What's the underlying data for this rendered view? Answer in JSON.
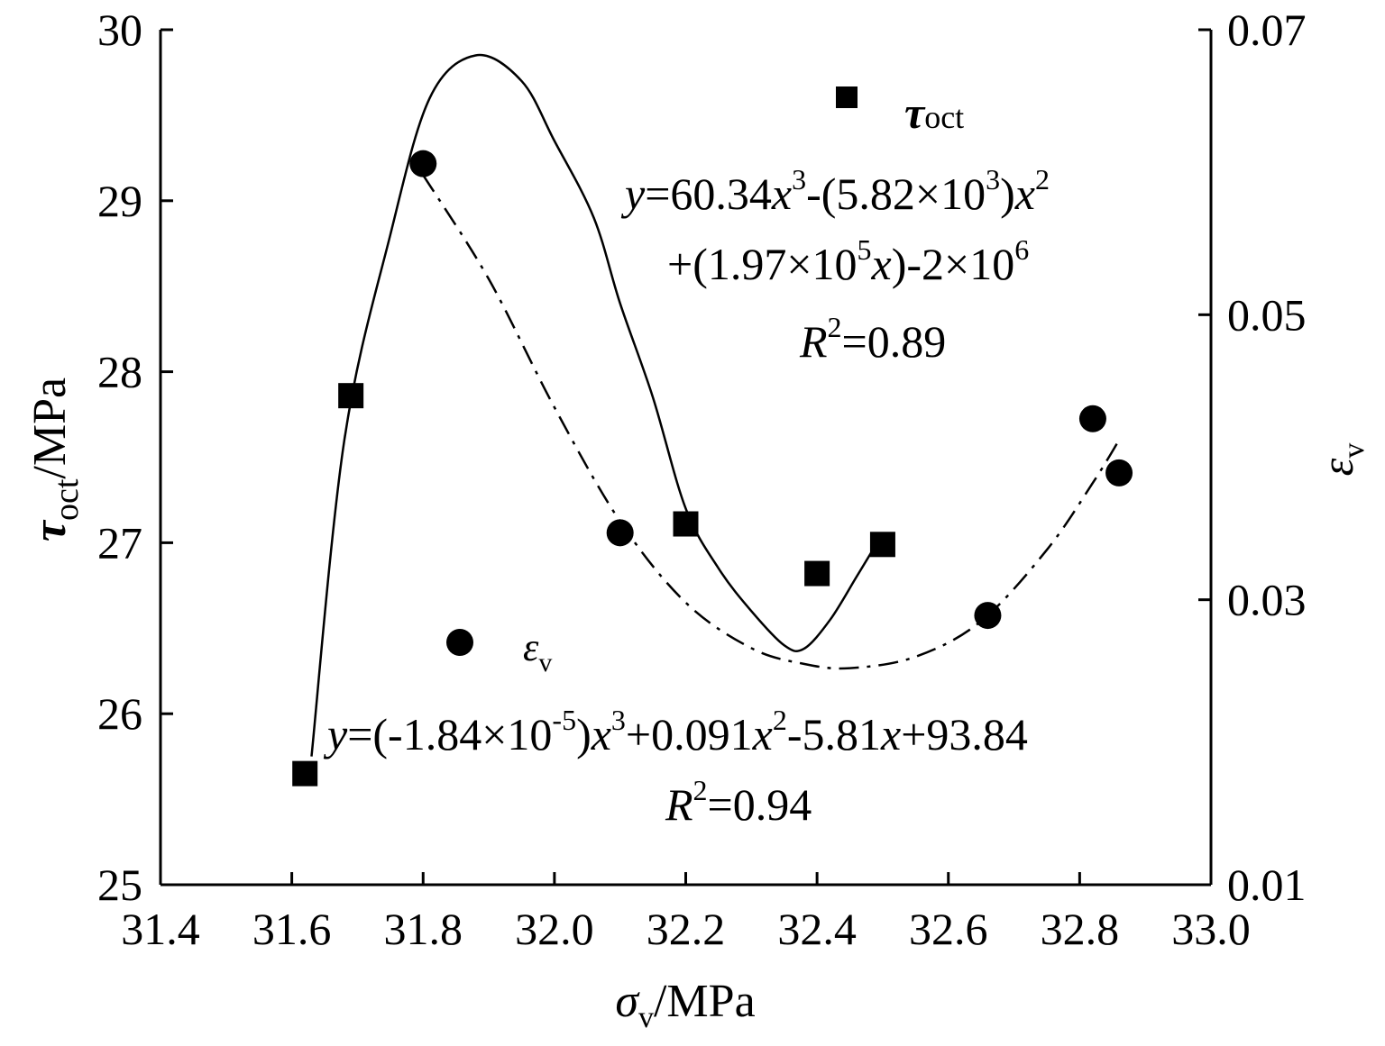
{
  "chart_data": {
    "type": "scatter",
    "xlabel": {
      "sym": "σ",
      "sub": "v",
      "unit": "/MPa"
    },
    "ylabel_left": {
      "sym": "τ",
      "sub": "oct",
      "unit": "/MPa"
    },
    "ylabel_right": {
      "sym": "ε",
      "sub": "v"
    },
    "xlim": [
      31.4,
      33.0
    ],
    "ylim_left": [
      25,
      30
    ],
    "ylim_right": [
      0.01,
      0.07
    ],
    "x_ticks": [
      "31.4",
      "31.6",
      "31.8",
      "32.0",
      "32.2",
      "32.4",
      "32.6",
      "32.8",
      "33.0"
    ],
    "y_left_ticks": [
      "25",
      "26",
      "27",
      "28",
      "29",
      "30"
    ],
    "y_right_ticks": [
      "0.01",
      "0.03",
      "0.05",
      "0.07"
    ],
    "series": [
      {
        "name": "τoct",
        "axis": "left",
        "marker": "square",
        "fit_line": "solid",
        "points": [
          [
            31.62,
            25.65
          ],
          [
            31.69,
            27.86
          ],
          [
            32.2,
            27.11
          ],
          [
            32.4,
            26.82
          ],
          [
            32.5,
            26.99
          ]
        ],
        "fit_curve": [
          [
            31.63,
            25.75
          ],
          [
            31.68,
            27.6
          ],
          [
            31.75,
            28.8
          ],
          [
            31.81,
            29.6
          ],
          [
            31.88,
            29.85
          ],
          [
            31.95,
            29.7
          ],
          [
            32.0,
            29.35
          ],
          [
            32.06,
            28.9
          ],
          [
            32.1,
            28.4
          ],
          [
            32.15,
            27.85
          ],
          [
            32.2,
            27.2
          ],
          [
            32.25,
            26.85
          ],
          [
            32.3,
            26.6
          ],
          [
            32.35,
            26.4
          ],
          [
            32.38,
            26.38
          ],
          [
            32.42,
            26.55
          ],
          [
            32.46,
            26.8
          ],
          [
            32.49,
            26.99
          ]
        ],
        "equation": {
          "lhs": "y",
          "parts": [
            "=60.34",
            "x",
            "3",
            "-(5.82×10",
            "3",
            ")",
            "x",
            "2"
          ],
          "line2": [
            "+(1.97×10",
            "5",
            "x",
            ")-2×10",
            "6"
          ]
        },
        "r2": "=0.89"
      },
      {
        "name": "εv",
        "axis": "right",
        "marker": "circle",
        "fit_line": "dash-dot",
        "points": [
          [
            31.8,
            0.0606
          ],
          [
            32.1,
            0.0347
          ],
          [
            32.66,
            0.0289
          ],
          [
            32.82,
            0.0427
          ],
          [
            32.86,
            0.0389
          ]
        ],
        "fit_curve": [
          [
            31.8,
            0.0598
          ],
          [
            31.9,
            0.0525
          ],
          [
            32.0,
            0.0435
          ],
          [
            32.1,
            0.0355
          ],
          [
            32.2,
            0.0298
          ],
          [
            32.3,
            0.0266
          ],
          [
            32.38,
            0.0255
          ],
          [
            32.45,
            0.0252
          ],
          [
            32.55,
            0.026
          ],
          [
            32.65,
            0.0285
          ],
          [
            32.75,
            0.0335
          ],
          [
            32.82,
            0.0382
          ],
          [
            32.86,
            0.0412
          ]
        ],
        "equation": {
          "lhs": "y",
          "parts": [
            "=(-1.84×10",
            "-5",
            ")",
            "x",
            "3",
            "+0.091",
            "x",
            "2",
            "-5.81",
            "x",
            "+93.84"
          ]
        },
        "r2": "=0.94"
      }
    ],
    "legend": [
      {
        "sym": "τ",
        "sub": "oct"
      },
      {
        "sym": "ε",
        "sub": "v"
      }
    ],
    "r2_label": "R",
    "r2_sup": "2"
  }
}
